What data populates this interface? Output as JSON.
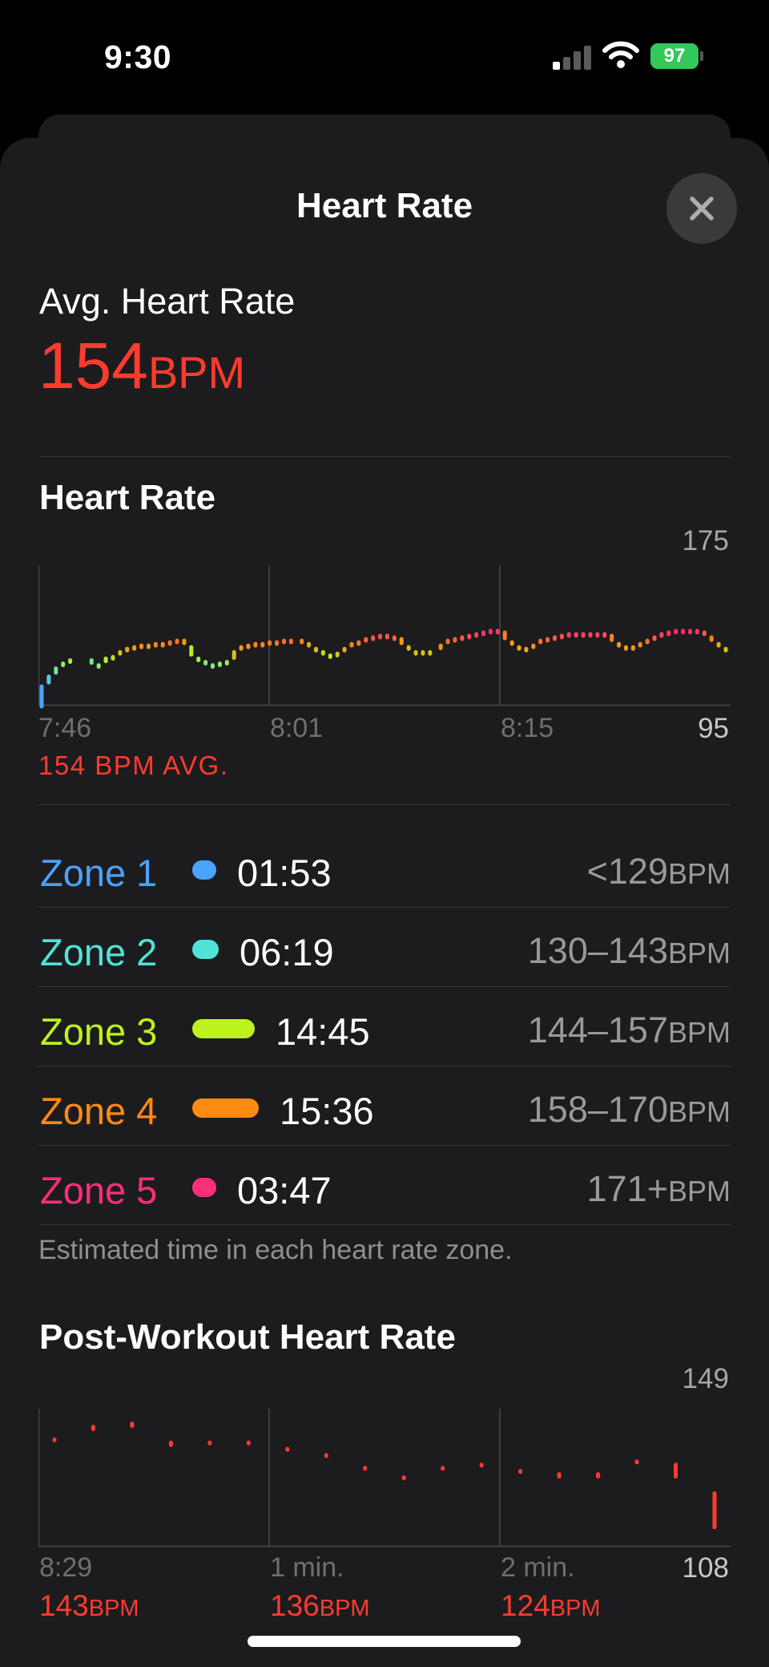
{
  "status": {
    "time": "9:30",
    "battery": "97",
    "icons": [
      "cellular-signal-icon",
      "wifi-icon",
      "battery-charging-icon"
    ]
  },
  "sheet": {
    "title": "Heart Rate",
    "close_icon": "close-icon"
  },
  "summary": {
    "label": "Avg. Heart Rate",
    "value": "154",
    "unit": "BPM",
    "color": "#ff3b2f"
  },
  "hr_chart": {
    "title": "Heart Rate",
    "y_max_label": "175",
    "y_min_label": "95",
    "x_labels": [
      "7:46",
      "8:01",
      "8:15"
    ],
    "avg_note": "154 BPM AVG.",
    "chart_data": {
      "type": "line",
      "x_unit": "minutes since 7:46",
      "ylim": [
        95,
        175
      ],
      "gradient": [
        "#4aa3ff",
        "#4fe3d8",
        "#b6f21c",
        "#ff8a14",
        "#ff2d6f"
      ],
      "points": [
        [
          0.0,
          107
        ],
        [
          0.4,
          113
        ],
        [
          0.8,
          118
        ],
        [
          1.2,
          121
        ],
        [
          1.6,
          123
        ],
        [
          2.8,
          119
        ],
        [
          3.2,
          120
        ],
        [
          3.6,
          124
        ],
        [
          4.0,
          125
        ],
        [
          4.4,
          128
        ],
        [
          4.8,
          130
        ],
        [
          5.2,
          131
        ],
        [
          5.6,
          132
        ],
        [
          6.0,
          132
        ],
        [
          6.4,
          133
        ],
        [
          6.8,
          132
        ],
        [
          7.2,
          134
        ],
        [
          7.6,
          135
        ],
        [
          8.0,
          131
        ],
        [
          8.4,
          124
        ],
        [
          8.8,
          122
        ],
        [
          9.2,
          120
        ],
        [
          9.6,
          120
        ],
        [
          10.0,
          121
        ],
        [
          10.4,
          122
        ],
        [
          10.8,
          128
        ],
        [
          11.2,
          131
        ],
        [
          11.6,
          132
        ],
        [
          12.0,
          133
        ],
        [
          12.4,
          133
        ],
        [
          12.8,
          134
        ],
        [
          13.2,
          134
        ],
        [
          13.6,
          135
        ],
        [
          14.0,
          135
        ],
        [
          14.6,
          133
        ],
        [
          15.0,
          130
        ],
        [
          15.4,
          128
        ],
        [
          15.8,
          126
        ],
        [
          16.2,
          125
        ],
        [
          16.6,
          127
        ],
        [
          17.0,
          130
        ],
        [
          17.4,
          133
        ],
        [
          17.8,
          134
        ],
        [
          18.2,
          136
        ],
        [
          18.6,
          137
        ],
        [
          19.0,
          138
        ],
        [
          19.4,
          137
        ],
        [
          19.8,
          136
        ],
        [
          20.2,
          131
        ],
        [
          20.6,
          128
        ],
        [
          21.0,
          128
        ],
        [
          21.4,
          128
        ],
        [
          21.8,
          128
        ],
        [
          22.4,
          132
        ],
        [
          22.8,
          135
        ],
        [
          23.2,
          136
        ],
        [
          23.6,
          137
        ],
        [
          24.0,
          138
        ],
        [
          24.4,
          139
        ],
        [
          24.8,
          140
        ],
        [
          25.2,
          141
        ],
        [
          25.6,
          140
        ],
        [
          26.0,
          134
        ],
        [
          26.4,
          131
        ],
        [
          26.8,
          130
        ],
        [
          27.2,
          130
        ],
        [
          27.6,
          132
        ],
        [
          28.0,
          135
        ],
        [
          28.4,
          136
        ],
        [
          28.8,
          137
        ],
        [
          29.2,
          138
        ],
        [
          29.6,
          139
        ],
        [
          30.0,
          139
        ],
        [
          30.4,
          139
        ],
        [
          30.8,
          139
        ],
        [
          31.2,
          139
        ],
        [
          31.6,
          138
        ],
        [
          32.0,
          133
        ],
        [
          32.4,
          131
        ],
        [
          32.8,
          131
        ],
        [
          33.2,
          131
        ],
        [
          33.6,
          133
        ],
        [
          34.0,
          135
        ],
        [
          34.4,
          137
        ],
        [
          34.8,
          139
        ],
        [
          35.2,
          140
        ],
        [
          35.6,
          141
        ],
        [
          36.0,
          141
        ],
        [
          36.4,
          141
        ],
        [
          36.8,
          140
        ],
        [
          37.2,
          137
        ],
        [
          37.6,
          133
        ],
        [
          38.0,
          130
        ],
        [
          38.4,
          128
        ]
      ]
    }
  },
  "zones": {
    "items": [
      {
        "name": "Zone 1",
        "time": "01:53",
        "range": "<129",
        "unit": "BPM",
        "color": "#4aa3ff",
        "fraction": 0.045
      },
      {
        "name": "Zone 2",
        "time": "06:19",
        "range": "130–143",
        "unit": "BPM",
        "color": "#4fe3d8",
        "fraction": 0.152
      },
      {
        "name": "Zone 3",
        "time": "14:45",
        "range": "144–157",
        "unit": "BPM",
        "color": "#bef21c",
        "fraction": 0.355
      },
      {
        "name": "Zone 4",
        "time": "15:36",
        "range": "158–170",
        "unit": "BPM",
        "color": "#ff8a14",
        "fraction": 0.375
      },
      {
        "name": "Zone 5",
        "time": "03:47",
        "range": "171+",
        "unit": "BPM",
        "color": "#ff2d7a",
        "fraction": 0.091
      }
    ],
    "note": "Estimated time in each heart rate zone."
  },
  "post_chart": {
    "title": "Post-Workout Heart Rate",
    "y_max_label": "149",
    "y_min_label": "108",
    "x_labels": [
      "8:29",
      "1 min.",
      "2 min."
    ],
    "values": [
      {
        "value": "143",
        "unit": "BPM"
      },
      {
        "value": "136",
        "unit": "BPM"
      },
      {
        "value": "124",
        "unit": "BPM"
      }
    ],
    "chart_data": {
      "type": "scatter",
      "x_unit": "seconds since 8:29",
      "ylim": [
        108,
        149
      ],
      "color": "#ff3b2f",
      "points": [
        [
          5,
          142,
          142
        ],
        [
          15,
          144,
          146
        ],
        [
          25,
          145,
          147
        ],
        [
          35,
          139,
          141
        ],
        [
          45,
          140,
          141
        ],
        [
          55,
          140,
          141
        ],
        [
          65,
          139,
          139
        ],
        [
          75,
          137,
          137
        ],
        [
          85,
          133,
          133
        ],
        [
          95,
          129,
          130
        ],
        [
          105,
          133,
          133
        ],
        [
          115,
          134,
          134
        ],
        [
          125,
          132,
          132
        ],
        [
          135,
          129,
          131
        ],
        [
          145,
          129,
          131
        ],
        [
          155,
          135,
          135
        ],
        [
          165,
          129,
          134
        ],
        [
          175,
          113,
          125
        ]
      ]
    }
  }
}
